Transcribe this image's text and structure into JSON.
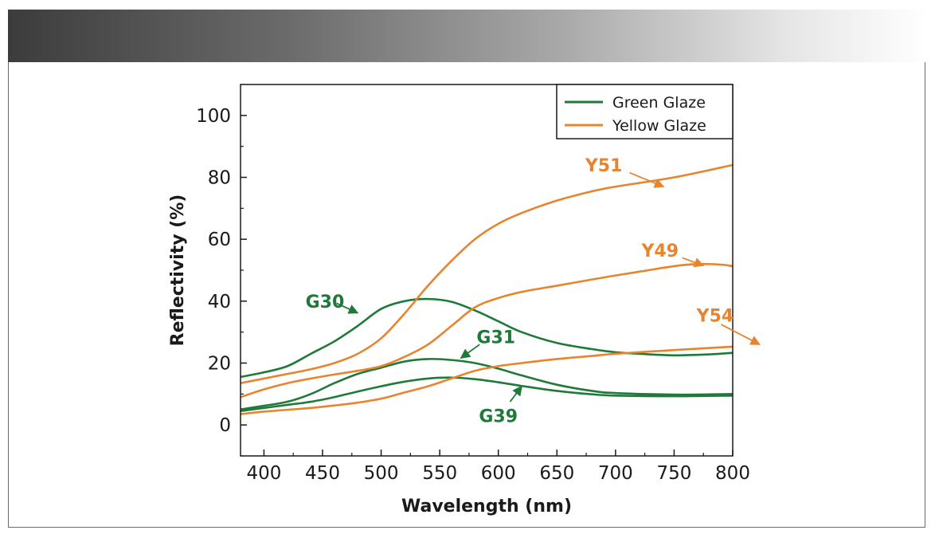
{
  "chart_data": {
    "type": "line",
    "xlabel": "Wavelength (nm)",
    "ylabel": "Reflectivity (%)",
    "xlim": [
      380,
      800
    ],
    "ylim": [
      -10,
      110
    ],
    "xticks": [
      400,
      450,
      500,
      550,
      600,
      650,
      700,
      750,
      800
    ],
    "yticks": [
      0,
      20,
      40,
      60,
      80,
      100
    ],
    "legend": {
      "position": "top-right",
      "entries": [
        {
          "label": "Green Glaze",
          "color": "#1f7a3a"
        },
        {
          "label": "Yellow Glaze",
          "color": "#e8842e"
        }
      ]
    },
    "series": [
      {
        "name": "G30",
        "group": "Green Glaze",
        "color": "#1f7a3a",
        "points": [
          [
            380,
            15.5
          ],
          [
            400,
            17
          ],
          [
            420,
            19
          ],
          [
            440,
            23
          ],
          [
            460,
            27
          ],
          [
            480,
            32
          ],
          [
            500,
            37.5
          ],
          [
            520,
            40
          ],
          [
            540,
            40.7
          ],
          [
            560,
            39.8
          ],
          [
            580,
            37
          ],
          [
            600,
            33.5
          ],
          [
            620,
            30
          ],
          [
            650,
            26.5
          ],
          [
            680,
            24.5
          ],
          [
            700,
            23.5
          ],
          [
            720,
            23
          ],
          [
            750,
            22.5
          ],
          [
            780,
            22.8
          ],
          [
            800,
            23.3
          ]
        ]
      },
      {
        "name": "G31",
        "group": "Green Glaze",
        "color": "#1f7a3a",
        "points": [
          [
            380,
            5
          ],
          [
            400,
            6.2
          ],
          [
            420,
            7.5
          ],
          [
            440,
            10
          ],
          [
            460,
            13.5
          ],
          [
            480,
            16.5
          ],
          [
            500,
            18.5
          ],
          [
            520,
            20.5
          ],
          [
            540,
            21.3
          ],
          [
            560,
            21
          ],
          [
            580,
            20
          ],
          [
            600,
            18.2
          ],
          [
            620,
            16
          ],
          [
            650,
            13
          ],
          [
            680,
            11
          ],
          [
            700,
            10.3
          ],
          [
            750,
            9.8
          ],
          [
            800,
            10
          ]
        ]
      },
      {
        "name": "G39",
        "group": "Green Glaze",
        "color": "#1f7a3a",
        "points": [
          [
            380,
            4.5
          ],
          [
            400,
            5.5
          ],
          [
            420,
            6.5
          ],
          [
            440,
            7.5
          ],
          [
            460,
            9
          ],
          [
            480,
            10.8
          ],
          [
            500,
            12.5
          ],
          [
            520,
            14
          ],
          [
            540,
            15
          ],
          [
            560,
            15.3
          ],
          [
            580,
            14.8
          ],
          [
            600,
            13.8
          ],
          [
            620,
            12.6
          ],
          [
            650,
            11
          ],
          [
            680,
            9.9
          ],
          [
            700,
            9.5
          ],
          [
            750,
            9.3
          ],
          [
            800,
            9.5
          ]
        ]
      },
      {
        "name": "Y51",
        "group": "Yellow Glaze",
        "color": "#e8842e",
        "points": [
          [
            380,
            13.5
          ],
          [
            400,
            15
          ],
          [
            420,
            16.5
          ],
          [
            440,
            18
          ],
          [
            460,
            20
          ],
          [
            480,
            23
          ],
          [
            500,
            28
          ],
          [
            520,
            36
          ],
          [
            540,
            45
          ],
          [
            560,
            53
          ],
          [
            580,
            60
          ],
          [
            600,
            65
          ],
          [
            620,
            68.5
          ],
          [
            650,
            72.5
          ],
          [
            680,
            75.5
          ],
          [
            700,
            77
          ],
          [
            750,
            80
          ],
          [
            800,
            84
          ]
        ]
      },
      {
        "name": "Y49",
        "group": "Yellow Glaze",
        "color": "#e8842e",
        "points": [
          [
            380,
            9
          ],
          [
            400,
            11.5
          ],
          [
            420,
            13.5
          ],
          [
            440,
            15
          ],
          [
            460,
            16.3
          ],
          [
            480,
            17.5
          ],
          [
            500,
            19
          ],
          [
            520,
            22
          ],
          [
            540,
            26
          ],
          [
            560,
            32
          ],
          [
            580,
            38
          ],
          [
            600,
            41
          ],
          [
            620,
            43
          ],
          [
            650,
            45
          ],
          [
            680,
            47
          ],
          [
            700,
            48.3
          ],
          [
            720,
            49.5
          ],
          [
            750,
            51.3
          ],
          [
            770,
            52
          ],
          [
            790,
            51.8
          ],
          [
            800,
            51.3
          ]
        ]
      },
      {
        "name": "Y54",
        "group": "Yellow Glaze",
        "color": "#e8842e",
        "points": [
          [
            380,
            3.5
          ],
          [
            400,
            4.3
          ],
          [
            420,
            4.9
          ],
          [
            440,
            5.5
          ],
          [
            460,
            6.3
          ],
          [
            480,
            7.2
          ],
          [
            500,
            8.5
          ],
          [
            520,
            10.5
          ],
          [
            540,
            12.5
          ],
          [
            560,
            15
          ],
          [
            580,
            17.5
          ],
          [
            600,
            19
          ],
          [
            620,
            20
          ],
          [
            650,
            21.3
          ],
          [
            680,
            22.3
          ],
          [
            700,
            23
          ],
          [
            750,
            24.2
          ],
          [
            800,
            25.3
          ]
        ]
      }
    ],
    "annotations": [
      {
        "text": "G30",
        "series": "G30",
        "color": "#1f7a3a",
        "label_at": [
          452,
          40
        ],
        "arrow_from": [
          462,
          39.3
        ],
        "arrow_to": [
          480,
          36.2
        ]
      },
      {
        "text": "G31",
        "series": "G31",
        "color": "#1f7a3a",
        "label_at": [
          598,
          28.5
        ],
        "arrow_from": [
          584,
          26
        ],
        "arrow_to": [
          568,
          21.6
        ]
      },
      {
        "text": "G39",
        "series": "G39",
        "color": "#1f7a3a",
        "label_at": [
          600,
          3
        ],
        "arrow_from": [
          610,
          7.5
        ],
        "arrow_to": [
          620,
          12.5
        ]
      },
      {
        "text": "Y51",
        "series": "Y51",
        "color": "#e8842e",
        "label_at": [
          690,
          84
        ],
        "arrow_from": [
          712,
          81.5
        ],
        "arrow_to": [
          741,
          77
        ]
      },
      {
        "text": "Y49",
        "series": "Y49",
        "color": "#e8842e",
        "label_at": [
          738,
          56.5
        ],
        "arrow_from": [
          757,
          54
        ],
        "arrow_to": [
          775,
          51.5
        ]
      },
      {
        "text": "Y54",
        "series": "Y54",
        "color": "#e8842e",
        "label_at": [
          785,
          35.5
        ],
        "arrow_from": [
          790,
          32.5
        ],
        "arrow_to": [
          823,
          26
        ]
      }
    ]
  }
}
